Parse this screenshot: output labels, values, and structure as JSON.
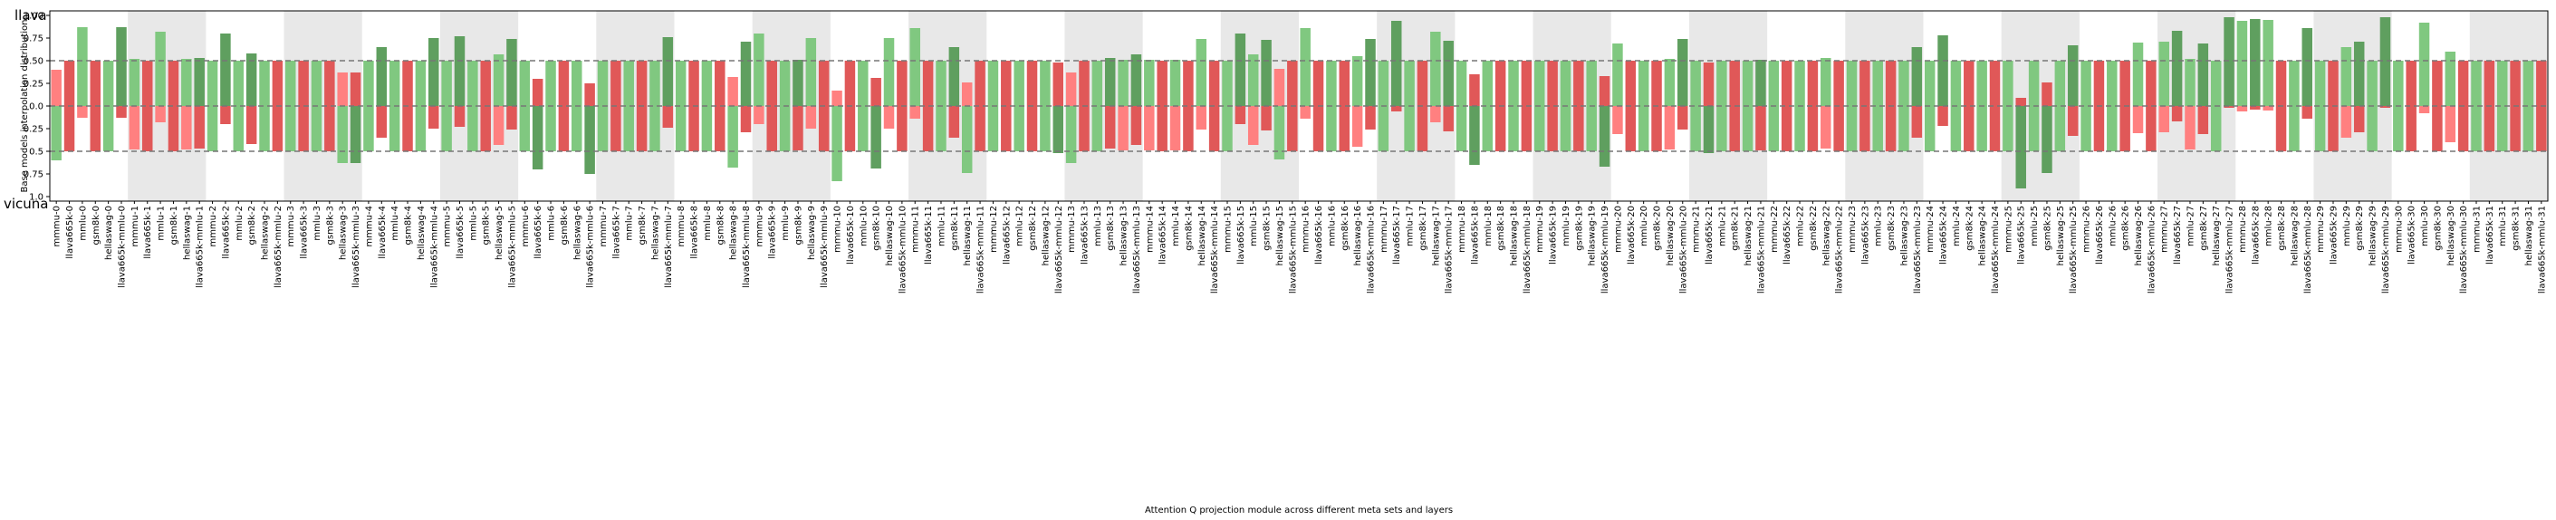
{
  "chart_data": {
    "type": "diverging-bar",
    "ylabel": "Base models interpolation distribution",
    "xlabel": "Attention Q projection module across different meta sets and layers",
    "categories": [
      "mmmu-0",
      "llava665k-0",
      "mmlu-0",
      "gsm8k-0",
      "hellaswag-0",
      "llava665k-mmlu-0",
      "mmmu-1",
      "llava665k-1",
      "mmlu-1",
      "gsm8k-1",
      "hellaswag-1",
      "llava665k-mmlu-1",
      "mmmu-2",
      "llava665k-2",
      "mmlu-2",
      "gsm8k-2",
      "hellaswag-2",
      "llava665k-mmlu-2",
      "mmmu-3",
      "llava665k-3",
      "mmlu-3",
      "gsm8k-3",
      "hellaswag-3",
      "llava665k-mmlu-3",
      "mmmu-4",
      "llava665k-4",
      "mmlu-4",
      "gsm8k-4",
      "hellaswag-4",
      "llava665k-mmlu-4",
      "mmmu-5",
      "llava665k-5",
      "mmlu-5",
      "gsm8k-5",
      "hellaswag-5",
      "llava665k-mmlu-5",
      "mmmu-6",
      "llava665k-6",
      "mmlu-6",
      "gsm8k-6",
      "hellaswag-6",
      "llava665k-mmlu-6",
      "mmmu-7",
      "llava665k-7",
      "mmlu-7",
      "gsm8k-7",
      "hellaswag-7",
      "llava665k-mmlu-7",
      "mmmu-8",
      "llava665k-8",
      "mmlu-8",
      "gsm8k-8",
      "hellaswag-8",
      "llava665k-mmlu-8",
      "mmmu-9",
      "llava665k-9",
      "mmlu-9",
      "gsm8k-9",
      "hellaswag-9",
      "llava665k-mmlu-9",
      "mmmu-10",
      "llava665k-10",
      "mmlu-10",
      "gsm8k-10",
      "hellaswag-10",
      "llava665k-mmlu-10",
      "mmmu-11",
      "llava665k-11",
      "mmlu-11",
      "gsm8k-11",
      "hellaswag-11",
      "llava665k-mmlu-11",
      "mmmu-12",
      "llava665k-12",
      "mmlu-12",
      "gsm8k-12",
      "hellaswag-12",
      "llava665k-mmlu-12",
      "mmmu-13",
      "llava665k-13",
      "mmlu-13",
      "gsm8k-13",
      "hellaswag-13",
      "llava665k-mmlu-13",
      "mmmu-14",
      "llava665k-14",
      "mmlu-14",
      "gsm8k-14",
      "hellaswag-14",
      "llava665k-mmlu-14",
      "mmmu-15",
      "llava665k-15",
      "mmlu-15",
      "gsm8k-15",
      "hellaswag-15",
      "llava665k-mmlu-15",
      "mmmu-16",
      "llava665k-16",
      "mmlu-16",
      "gsm8k-16",
      "hellaswag-16",
      "llava665k-mmlu-16",
      "mmmu-17",
      "llava665k-17",
      "mmlu-17",
      "gsm8k-17",
      "hellaswag-17",
      "llava665k-mmlu-17",
      "mmmu-18",
      "llava665k-18",
      "mmlu-18",
      "gsm8k-18",
      "hellaswag-18",
      "llava665k-mmlu-18",
      "mmmu-19",
      "llava665k-19",
      "mmlu-19",
      "gsm8k-19",
      "hellaswag-19",
      "llava665k-mmlu-19",
      "mmmu-20",
      "llava665k-20",
      "mmlu-20",
      "gsm8k-20",
      "hellaswag-20",
      "llava665k-mmlu-20",
      "mmmu-21",
      "llava665k-21",
      "mmlu-21",
      "gsm8k-21",
      "hellaswag-21",
      "llava665k-mmlu-21",
      "mmmu-22",
      "llava665k-22",
      "mmlu-22",
      "gsm8k-22",
      "hellaswag-22",
      "llava665k-mmlu-22",
      "mmmu-23",
      "llava665k-23",
      "mmlu-23",
      "gsm8k-23",
      "hellaswag-23",
      "llava665k-mmlu-23",
      "mmmu-24",
      "llava665k-24",
      "mmlu-24",
      "gsm8k-24",
      "hellaswag-24",
      "llava665k-mmlu-24",
      "mmmu-25",
      "llava665k-25",
      "mmlu-25",
      "gsm8k-25",
      "hellaswag-25",
      "llava665k-mmlu-25",
      "mmmu-26",
      "llava665k-26",
      "mmlu-26",
      "gsm8k-26",
      "hellaswag-26",
      "llava665k-mmlu-26",
      "mmmu-27",
      "llava665k-27",
      "mmlu-27",
      "gsm8k-27",
      "hellaswag-27",
      "llava665k-mmlu-27",
      "mmmu-28",
      "llava665k-28",
      "mmlu-28",
      "gsm8k-28",
      "hellaswag-28",
      "llava665k-mmlu-28",
      "mmmu-29",
      "llava665k-29",
      "mmlu-29",
      "gsm8k-29",
      "hellaswag-29",
      "llava665k-mmlu-29",
      "mmmu-30",
      "llava665k-30",
      "mmlu-30",
      "gsm8k-30",
      "hellaswag-30",
      "llava665k-mmlu-30",
      "mmmu-31",
      "llava665k-31",
      "mmlu-31",
      "gsm8k-31",
      "hellaswag-31",
      "llava665k-mmlu-31"
    ],
    "series": [
      {
        "name": "llava",
        "values": [
          0.4,
          0.5,
          0.87,
          0.5,
          0.5,
          0.87,
          0.52,
          0.5,
          0.82,
          0.5,
          0.52,
          0.53,
          0.5,
          0.8,
          0.5,
          0.58,
          0.5,
          0.5,
          0.5,
          0.5,
          0.5,
          0.5,
          0.37,
          0.37,
          0.5,
          0.65,
          0.5,
          0.5,
          0.5,
          0.75,
          0.5,
          0.77,
          0.5,
          0.5,
          0.57,
          0.74,
          0.5,
          0.3,
          0.5,
          0.5,
          0.5,
          0.25,
          0.5,
          0.5,
          0.5,
          0.5,
          0.5,
          0.76,
          0.5,
          0.5,
          0.5,
          0.5,
          0.32,
          0.71,
          0.8,
          0.5,
          0.5,
          0.51,
          0.75,
          0.5,
          0.17,
          0.5,
          0.5,
          0.31,
          0.75,
          0.5,
          0.86,
          0.5,
          0.5,
          0.65,
          0.26,
          0.5,
          0.5,
          0.5,
          0.5,
          0.5,
          0.5,
          0.48,
          0.37,
          0.5,
          0.5,
          0.53,
          0.51,
          0.57,
          0.51,
          0.5,
          0.51,
          0.5,
          0.74,
          0.5,
          0.5,
          0.8,
          0.57,
          0.73,
          0.41,
          0.5,
          0.86,
          0.5,
          0.5,
          0.5,
          0.55,
          0.74,
          0.5,
          0.94,
          0.5,
          0.5,
          0.82,
          0.72,
          0.5,
          0.35,
          0.5,
          0.5,
          0.5,
          0.5,
          0.5,
          0.5,
          0.5,
          0.5,
          0.5,
          0.33,
          0.69,
          0.5,
          0.5,
          0.5,
          0.52,
          0.74,
          0.5,
          0.48,
          0.5,
          0.5,
          0.5,
          0.51,
          0.5,
          0.5,
          0.5,
          0.5,
          0.53,
          0.5,
          0.5,
          0.5,
          0.5,
          0.5,
          0.5,
          0.65,
          0.5,
          0.78,
          0.5,
          0.5,
          0.5,
          0.5,
          0.5,
          0.09,
          0.5,
          0.26,
          0.5,
          0.67,
          0.5,
          0.5,
          0.5,
          0.5,
          0.7,
          0.5,
          0.71,
          0.83,
          0.52,
          0.69,
          0.5,
          0.98,
          0.94,
          0.96,
          0.95,
          0.5,
          0.5,
          0.86,
          0.5,
          0.5,
          0.65,
          0.71,
          0.5,
          0.98,
          0.5,
          0.5,
          0.92,
          0.5,
          0.6,
          0.5,
          0.5,
          0.5,
          0.5,
          0.5,
          0.5,
          0.5
        ]
      },
      {
        "name": "vicuna",
        "values": [
          -0.6,
          -0.5,
          -0.13,
          -0.5,
          -0.5,
          -0.13,
          -0.48,
          -0.5,
          -0.18,
          -0.5,
          -0.48,
          -0.47,
          -0.5,
          -0.2,
          -0.5,
          -0.42,
          -0.5,
          -0.5,
          -0.5,
          -0.5,
          -0.5,
          -0.5,
          -0.63,
          -0.63,
          -0.5,
          -0.35,
          -0.5,
          -0.5,
          -0.5,
          -0.25,
          -0.5,
          -0.23,
          -0.5,
          -0.5,
          -0.43,
          -0.26,
          -0.5,
          -0.7,
          -0.5,
          -0.5,
          -0.5,
          -0.75,
          -0.5,
          -0.5,
          -0.5,
          -0.5,
          -0.5,
          -0.24,
          -0.5,
          -0.5,
          -0.5,
          -0.5,
          -0.68,
          -0.29,
          -0.2,
          -0.5,
          -0.5,
          -0.49,
          -0.25,
          -0.5,
          -0.83,
          -0.5,
          -0.5,
          -0.69,
          -0.25,
          -0.5,
          -0.14,
          -0.5,
          -0.5,
          -0.35,
          -0.74,
          -0.5,
          -0.5,
          -0.5,
          -0.5,
          -0.5,
          -0.5,
          -0.52,
          -0.63,
          -0.5,
          -0.5,
          -0.47,
          -0.49,
          -0.43,
          -0.49,
          -0.5,
          -0.49,
          -0.5,
          -0.26,
          -0.5,
          -0.5,
          -0.2,
          -0.43,
          -0.27,
          -0.59,
          -0.5,
          -0.14,
          -0.5,
          -0.5,
          -0.5,
          -0.45,
          -0.26,
          -0.5,
          -0.06,
          -0.5,
          -0.5,
          -0.18,
          -0.28,
          -0.5,
          -0.65,
          -0.5,
          -0.5,
          -0.5,
          -0.5,
          -0.5,
          -0.5,
          -0.5,
          -0.5,
          -0.5,
          -0.67,
          -0.31,
          -0.5,
          -0.5,
          -0.5,
          -0.48,
          -0.26,
          -0.5,
          -0.52,
          -0.5,
          -0.5,
          -0.5,
          -0.49,
          -0.5,
          -0.5,
          -0.5,
          -0.5,
          -0.47,
          -0.5,
          -0.5,
          -0.5,
          -0.5,
          -0.5,
          -0.5,
          -0.35,
          -0.5,
          -0.22,
          -0.5,
          -0.5,
          -0.5,
          -0.5,
          -0.5,
          -0.91,
          -0.5,
          -0.74,
          -0.5,
          -0.33,
          -0.5,
          -0.5,
          -0.5,
          -0.5,
          -0.3,
          -0.5,
          -0.29,
          -0.17,
          -0.48,
          -0.31,
          -0.5,
          -0.02,
          -0.06,
          -0.04,
          -0.05,
          -0.5,
          -0.5,
          -0.14,
          -0.5,
          -0.5,
          -0.35,
          -0.29,
          -0.5,
          -0.02,
          -0.5,
          -0.5,
          -0.08,
          -0.5,
          -0.4,
          -0.5,
          -0.5,
          -0.5,
          -0.5,
          -0.5,
          -0.5,
          -0.5
        ]
      }
    ],
    "win_colors": [
      "#80c880",
      "#5f9f5f"
    ],
    "lose_colors": [
      "#ff8080",
      "#e05858"
    ],
    "band_color": "#e8e8e8",
    "ylim": [
      -1.05,
      1.05
    ],
    "yticks": [
      {
        "value": 1,
        "label": "1.00"
      },
      0.75,
      {
        "value": 0.5,
        "label": "0.50"
      },
      0.25,
      {
        "value": 0,
        "label": "0.0"
      },
      {
        "value": -0.25,
        "label": "0.25"
      },
      {
        "value": -0.5,
        "label": "0.5"
      },
      {
        "value": -0.75,
        "label": "0.75"
      },
      {
        "value": -1,
        "label": "1.0"
      }
    ],
    "hlines": [
      0.5,
      0,
      -0.5
    ]
  }
}
